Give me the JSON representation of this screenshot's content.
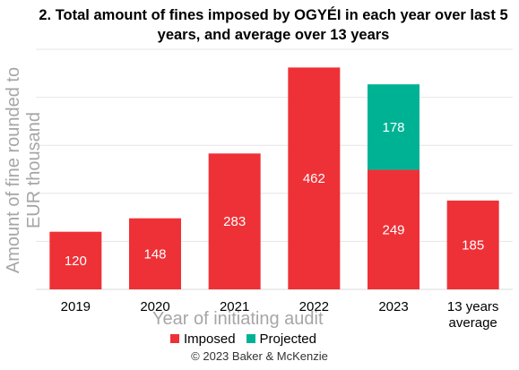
{
  "chart_data": {
    "type": "bar",
    "title": "2. Total amount of fines imposed by OGYÉI in each year over last 5 years, and average over 13 years",
    "xlabel": "Year of initiating audit",
    "ylabel": "Amount of fine rounded to EUR thousand",
    "categories": [
      "2019",
      "2020",
      "2021",
      "2022",
      "2023",
      "13 years average"
    ],
    "stacked": true,
    "series": [
      {
        "name": "Imposed",
        "color": "#ee3137",
        "values": [
          120,
          148,
          283,
          462,
          249,
          185
        ]
      },
      {
        "name": "Projected",
        "color": "#00b294",
        "values": [
          0,
          0,
          0,
          0,
          178,
          0
        ]
      }
    ],
    "ylim": [
      0,
      500
    ],
    "grid": true,
    "legend": "bottom"
  },
  "footer": "© 2023 Baker & McKenzie"
}
